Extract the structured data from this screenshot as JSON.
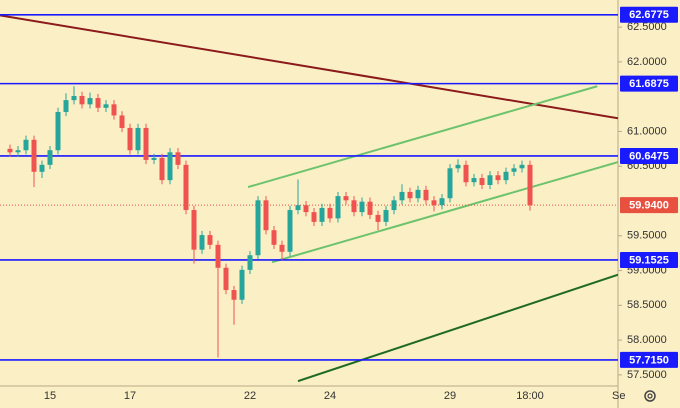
{
  "chart_data": {
    "type": "candlestick",
    "background": "#fbefc6",
    "up_color": "#26a69a",
    "down_color": "#ef5350",
    "ylim": [
      57.34,
      62.89
    ],
    "xlim": [
      -1.25,
      76
    ],
    "yticks": [
      {
        "value": 62.5,
        "label": "62.5000"
      },
      {
        "value": 62,
        "label": "62.0000"
      },
      {
        "value": 61,
        "label": "61.0000"
      },
      {
        "value": 60.5,
        "label": "60.5000"
      },
      {
        "value": 59.5,
        "label": "59.5000"
      },
      {
        "value": 59,
        "label": "59.0000"
      },
      {
        "value": 58.5,
        "label": "58.5000"
      },
      {
        "value": 58,
        "label": "58.0000"
      },
      {
        "value": 57.5,
        "label": "57.5000"
      }
    ],
    "categories": [
      null,
      null,
      null,
      null,
      null,
      "15",
      null,
      null,
      null,
      null,
      null,
      null,
      null,
      null,
      null,
      "17",
      null,
      null,
      null,
      null,
      null,
      null,
      null,
      null,
      null,
      null,
      null,
      null,
      null,
      null,
      "22",
      null,
      null,
      null,
      null,
      null,
      null,
      null,
      null,
      null,
      "24",
      null,
      null,
      null,
      null,
      null,
      null,
      null,
      null,
      null,
      null,
      null,
      null,
      null,
      null,
      "29",
      null,
      null,
      null,
      null,
      null,
      null,
      null,
      null,
      null,
      "18:00"
    ],
    "x_label_right": "Se",
    "open": [
      60.75,
      60.7,
      60.73,
      60.88,
      60.42,
      60.52,
      60.73,
      61.28,
      61.45,
      61.51,
      61.39,
      61.48,
      61.34,
      61.39,
      61.23,
      61.05,
      60.73,
      61.05,
      60.59,
      60.62,
      60.3,
      60.7,
      60.52,
      59.87,
      59.3,
      59.51,
      59.37,
      59.04,
      58.72,
      58.58,
      59.01,
      59.22,
      60.01,
      59.58,
      59.37,
      59.27,
      59.87,
      59.94,
      59.84,
      59.7,
      59.9,
      59.75,
      60.07,
      60.01,
      59.84,
      59.99,
      59.8,
      59.7,
      59.87,
      60.01,
      60.13,
      60.04,
      60.16,
      60.01,
      59.94,
      60.04,
      60.47,
      60.52,
      60.27,
      60.33,
      60.23,
      60.37,
      60.3,
      60.42,
      60.47,
      60.52
    ],
    "high": [
      60.81,
      60.79,
      60.94,
      60.94,
      60.58,
      60.79,
      61.34,
      61.55,
      61.65,
      61.57,
      61.56,
      61.54,
      61.45,
      61.45,
      61.29,
      61.11,
      61.11,
      61.11,
      60.68,
      60.68,
      60.76,
      60.76,
      60.58,
      59.93,
      59.57,
      59.57,
      59.43,
      59.1,
      58.78,
      59.07,
      59.28,
      60.07,
      60.07,
      59.64,
      59.43,
      59.93,
      60.31,
      60.0,
      59.9,
      59.96,
      59.96,
      60.13,
      60.13,
      60.07,
      60.05,
      60.05,
      59.86,
      59.93,
      60.07,
      60.24,
      60.19,
      60.22,
      60.22,
      60.07,
      60.1,
      60.53,
      60.6,
      60.58,
      60.39,
      60.39,
      60.43,
      60.43,
      60.48,
      60.53,
      60.58,
      60.58
    ],
    "low": [
      60.64,
      60.64,
      60.67,
      60.2,
      60.33,
      60.46,
      60.67,
      61.22,
      61.39,
      61.33,
      61.33,
      61.28,
      61.28,
      61.17,
      60.99,
      60.67,
      60.67,
      60.53,
      60.53,
      60.24,
      60.24,
      60.46,
      59.81,
      59.1,
      59.24,
      59.31,
      57.75,
      58.66,
      58.22,
      58.52,
      58.95,
      59.16,
      59.52,
      59.31,
      59.15,
      59.21,
      59.81,
      59.78,
      59.64,
      59.64,
      59.69,
      59.69,
      59.95,
      59.78,
      59.78,
      59.74,
      59.58,
      59.64,
      59.81,
      59.95,
      59.98,
      59.98,
      59.95,
      59.85,
      59.88,
      59.98,
      60.41,
      60.21,
      60.21,
      60.17,
      60.17,
      60.24,
      60.24,
      60.36,
      60.41,
      59.86
    ],
    "close": [
      60.7,
      60.73,
      60.88,
      60.42,
      60.52,
      60.73,
      61.28,
      61.45,
      61.51,
      61.39,
      61.48,
      61.34,
      61.39,
      61.23,
      61.05,
      60.73,
      61.05,
      60.59,
      60.62,
      60.3,
      60.7,
      60.52,
      59.87,
      59.3,
      59.51,
      59.37,
      59.04,
      58.72,
      58.58,
      59.01,
      59.22,
      60.01,
      59.58,
      59.37,
      59.27,
      59.87,
      59.94,
      59.84,
      59.7,
      59.9,
      59.75,
      60.07,
      60.01,
      59.84,
      59.99,
      59.8,
      59.7,
      59.87,
      60.01,
      60.13,
      60.04,
      60.16,
      60.01,
      59.94,
      60.04,
      60.47,
      60.52,
      60.27,
      60.33,
      60.23,
      60.37,
      60.3,
      60.42,
      60.47,
      60.52,
      59.94
    ],
    "levels": [
      62.6775,
      61.6875,
      60.6475,
      59.1525,
      {
        "value": 57.715,
        "label": "57.7150"
      }
    ],
    "level_color": "#1a1aff",
    "current_price": {
      "value": 59.94,
      "label": "59.9400"
    },
    "current_price_color": "#e8503f",
    "trendlines": [
      {
        "x": [
          -1.25,
          76
        ],
        "y": [
          62.67,
          61.19
        ],
        "color": "#8b1a1a"
      },
      {
        "x": [
          29.75,
          73.4
        ],
        "y": [
          60.2,
          61.65
        ],
        "color": "#6cc36c"
      },
      {
        "x": [
          32.75,
          76
        ],
        "y": [
          59.12,
          60.56
        ],
        "color": "#6cc36c"
      },
      {
        "x": [
          36,
          76
        ],
        "y": [
          57.41,
          58.94
        ],
        "color": "#1f6b1f"
      }
    ]
  }
}
